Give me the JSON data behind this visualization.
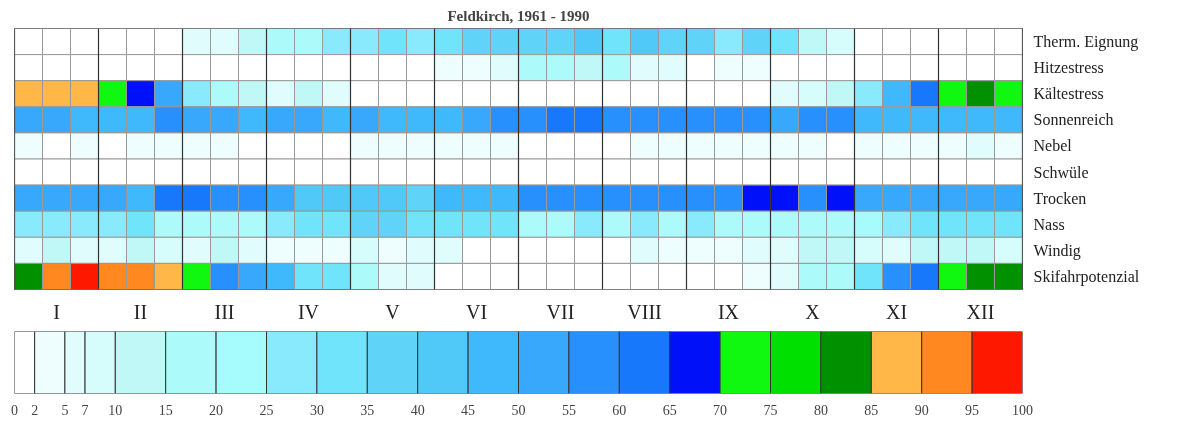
{
  "chart_data": {
    "type": "heatmap",
    "title": "Feldkirch, 1961 - 1990",
    "categories": [
      null,
      "I",
      null,
      null,
      "II",
      null,
      null,
      "III",
      null,
      null,
      "IV",
      null,
      null,
      "V",
      null,
      null,
      "VI",
      null,
      null,
      "VII",
      null,
      null,
      "VIII",
      null,
      null,
      "IX",
      null,
      null,
      "X",
      null,
      null,
      "XI",
      null,
      null,
      "XII",
      null
    ],
    "y_categories": [
      "Therm. Eignung",
      "Hitzestress",
      "Kältestress",
      "Sonnenreich",
      "Nebel",
      "Schwüle",
      "Trocken",
      "Nass",
      "Windig",
      "Skifahrpotenzial"
    ],
    "cells": [
      [
        1,
        1,
        1,
        1,
        1,
        1,
        6,
        6,
        12.5,
        17.5,
        17.5,
        27.5,
        27.5,
        32.5,
        27.5,
        32.5,
        37.5,
        37.5,
        37.5,
        37.5,
        42.5,
        32.5,
        42.5,
        37.5,
        37.5,
        27.5,
        37.5,
        32.5,
        12.5,
        8.5,
        1,
        1,
        1,
        1,
        1,
        1
      ],
      [
        1,
        1,
        1,
        1,
        1,
        1,
        1,
        1,
        1,
        1,
        1,
        1,
        1,
        1,
        1,
        3.5,
        3.5,
        6,
        17.5,
        17.5,
        12.5,
        17.5,
        6,
        6,
        1,
        3.5,
        3.5,
        1,
        1,
        1,
        1,
        1,
        1,
        1,
        1,
        1
      ],
      [
        87.5,
        87.5,
        87.5,
        72.5,
        67.5,
        52.5,
        27.5,
        17.5,
        12.5,
        6,
        12.5,
        6,
        1,
        1,
        1,
        1,
        1,
        1,
        1,
        1,
        1,
        1,
        1,
        1,
        1,
        1,
        1,
        6,
        8.5,
        12.5,
        27.5,
        47.5,
        62.5,
        72.5,
        82.5,
        72.5
      ],
      [
        52.5,
        52.5,
        47.5,
        47.5,
        47.5,
        57.5,
        52.5,
        52.5,
        47.5,
        52.5,
        52.5,
        47.5,
        52.5,
        47.5,
        47.5,
        47.5,
        52.5,
        57.5,
        57.5,
        62.5,
        62.5,
        57.5,
        57.5,
        57.5,
        57.5,
        57.5,
        57.5,
        52.5,
        57.5,
        57.5,
        47.5,
        47.5,
        47.5,
        47.5,
        47.5,
        47.5
      ],
      [
        3.5,
        1,
        3.5,
        1,
        3.5,
        3.5,
        3.5,
        3.5,
        1,
        1,
        1,
        1,
        3.5,
        3.5,
        3.5,
        3.5,
        3.5,
        3.5,
        1,
        1,
        1,
        1,
        3.5,
        3.5,
        3.5,
        3.5,
        3.5,
        3.5,
        3.5,
        1,
        3.5,
        3.5,
        3.5,
        3.5,
        6,
        3.5
      ],
      [
        1,
        1,
        1,
        1,
        1,
        1,
        1,
        1,
        1,
        1,
        1,
        1,
        1,
        1,
        1,
        1,
        1,
        1,
        1,
        1,
        1,
        1,
        1,
        1,
        1,
        1,
        1,
        1,
        1,
        1,
        1,
        1,
        1,
        1,
        1,
        1
      ],
      [
        52.5,
        52.5,
        52.5,
        52.5,
        47.5,
        62.5,
        62.5,
        57.5,
        57.5,
        52.5,
        42.5,
        42.5,
        42.5,
        42.5,
        37.5,
        47.5,
        47.5,
        47.5,
        57.5,
        57.5,
        57.5,
        57.5,
        57.5,
        57.5,
        57.5,
        57.5,
        67.5,
        67.5,
        57.5,
        67.5,
        52.5,
        52.5,
        52.5,
        52.5,
        52.5,
        52.5
      ],
      [
        27.5,
        27.5,
        27.5,
        27.5,
        32.5,
        17.5,
        17.5,
        17.5,
        17.5,
        27.5,
        32.5,
        32.5,
        37.5,
        37.5,
        32.5,
        32.5,
        32.5,
        32.5,
        17.5,
        17.5,
        27.5,
        17.5,
        27.5,
        17.5,
        27.5,
        17.5,
        17.5,
        17.5,
        17.5,
        17.5,
        22.5,
        27.5,
        32.5,
        32.5,
        32.5,
        32.5
      ],
      [
        6,
        12.5,
        6,
        6,
        12.5,
        8.5,
        6,
        12.5,
        6,
        3.5,
        3.5,
        3.5,
        8.5,
        3.5,
        6,
        6,
        1,
        1,
        1,
        1,
        1,
        1,
        6,
        3.5,
        3.5,
        3.5,
        6,
        6,
        12.5,
        12.5,
        8.5,
        6,
        12.5,
        12.5,
        12.5,
        8.5
      ],
      [
        82.5,
        92.5,
        97.5,
        92.5,
        92.5,
        87.5,
        72.5,
        57.5,
        52.5,
        47.5,
        32.5,
        32.5,
        17.5,
        6,
        6,
        1,
        1,
        1,
        1,
        1,
        1,
        1,
        1,
        1,
        1,
        1,
        3.5,
        6,
        17.5,
        17.5,
        32.5,
        57.5,
        62.5,
        72.5,
        82.5,
        82.5
      ]
    ],
    "clim": [
      0,
      100
    ],
    "cticks": [
      0,
      2,
      5,
      7,
      10,
      15,
      20,
      25,
      30,
      35,
      40,
      45,
      50,
      55,
      60,
      65,
      70,
      75,
      80,
      85,
      90,
      95,
      100
    ]
  }
}
